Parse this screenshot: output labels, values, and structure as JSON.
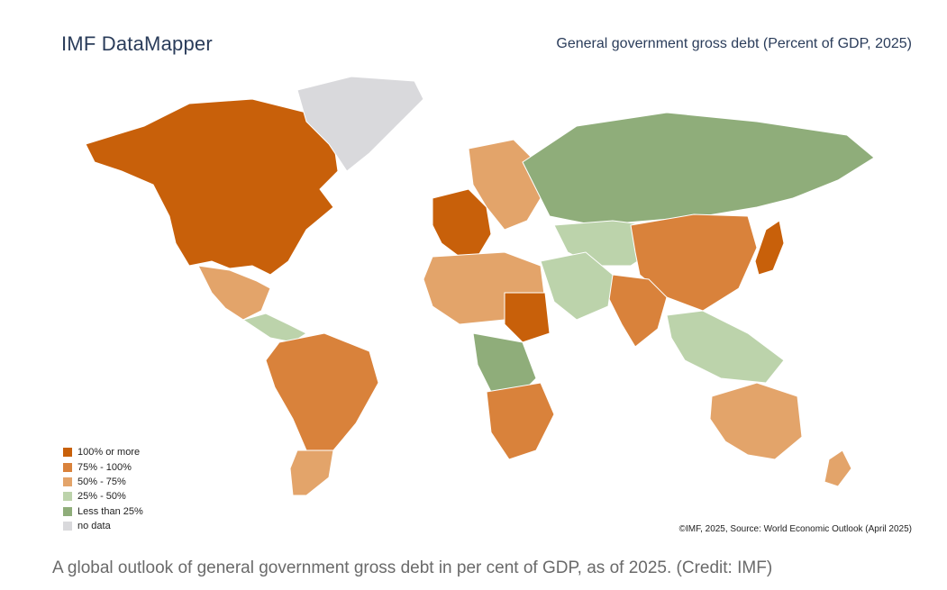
{
  "header": {
    "brand": "IMF DataMapper",
    "map_title": "General government gross debt (Percent of GDP, 2025)"
  },
  "legend": {
    "items": [
      {
        "label": "100% or more",
        "color": "#c8600a"
      },
      {
        "label": "75% - 100%",
        "color": "#d9823b"
      },
      {
        "label": "50% - 75%",
        "color": "#e3a46a"
      },
      {
        "label": "25% - 50%",
        "color": "#bcd3ab"
      },
      {
        "label": "Less than 25%",
        "color": "#8fad7a"
      },
      {
        "label": "no data",
        "color": "#d9d9dc"
      }
    ]
  },
  "source": "©IMF, 2025, Source: World Economic Outlook (April 2025)",
  "caption": "A global outlook of general government gross debt in per cent of GDP, as of 2025. (Credit: IMF)",
  "regions": [
    {
      "name": "north-america",
      "color": "#c8600a"
    },
    {
      "name": "greenland",
      "color": "#d9d9dc"
    },
    {
      "name": "mexico",
      "color": "#e3a46a"
    },
    {
      "name": "central-america",
      "color": "#bcd3ab"
    },
    {
      "name": "brazil",
      "color": "#d9823b"
    },
    {
      "name": "argentina",
      "color": "#e3a46a"
    },
    {
      "name": "western-europe",
      "color": "#c8600a"
    },
    {
      "name": "eastern-europe",
      "color": "#e3a46a"
    },
    {
      "name": "russia",
      "color": "#8fad7a"
    },
    {
      "name": "central-asia",
      "color": "#bcd3ab"
    },
    {
      "name": "china",
      "color": "#d9823b"
    },
    {
      "name": "india",
      "color": "#d9823b"
    },
    {
      "name": "japan",
      "color": "#c8600a"
    },
    {
      "name": "north-africa",
      "color": "#e3a46a"
    },
    {
      "name": "sudan",
      "color": "#c8600a"
    },
    {
      "name": "central-africa",
      "color": "#8fad7a"
    },
    {
      "name": "southern-africa",
      "color": "#d9823b"
    },
    {
      "name": "middle-east",
      "color": "#bcd3ab"
    },
    {
      "name": "southeast-asia",
      "color": "#bcd3ab"
    },
    {
      "name": "australia",
      "color": "#e3a46a"
    },
    {
      "name": "new-zealand",
      "color": "#e3a46a"
    }
  ]
}
